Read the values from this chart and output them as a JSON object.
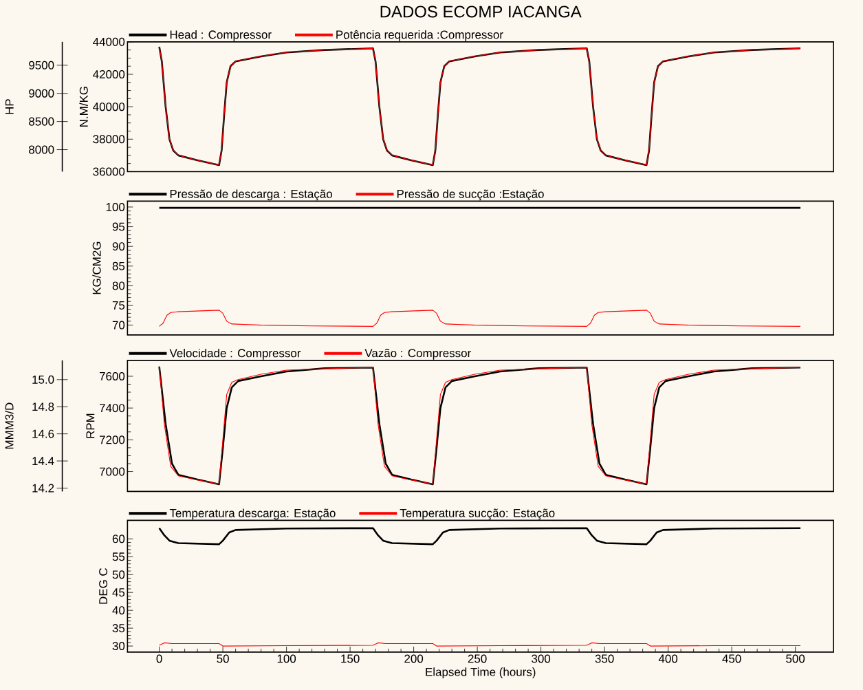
{
  "chart_data": [
    {
      "type": "line",
      "title": "DADOS ECOMP IACANGA",
      "ylabel": "N.M/KG",
      "y2label": "HP",
      "xlim": [
        -25,
        530
      ],
      "ylim": [
        36000,
        44000
      ],
      "yticks": [
        36000,
        38000,
        40000,
        42000,
        44000
      ],
      "y2lim": [
        7610,
        9915
      ],
      "y2ticks": [
        8000,
        8500,
        9000,
        9500
      ],
      "tick_labels": "y",
      "legend": "top",
      "series": [
        {
          "name": "Head : Compressor",
          "color": "#000000",
          "x": [
            0,
            2,
            5,
            8,
            11,
            15,
            30,
            47,
            49,
            51,
            53,
            56,
            60,
            80,
            100,
            130,
            168,
            170,
            173,
            176,
            179,
            183,
            198,
            215,
            217,
            219,
            221,
            224,
            228,
            248,
            268,
            298,
            336,
            338,
            341,
            344,
            347,
            351,
            366,
            383,
            385,
            387,
            389,
            392,
            396,
            416,
            436,
            466,
            504
          ],
          "values": [
            43700,
            42800,
            40000,
            38000,
            37300,
            37000,
            36700,
            36400,
            37300,
            39500,
            41500,
            42500,
            42800,
            43100,
            43350,
            43500,
            43600,
            42800,
            40000,
            38000,
            37300,
            37000,
            36700,
            36400,
            37300,
            39500,
            41500,
            42500,
            42800,
            43100,
            43350,
            43500,
            43600,
            42800,
            40000,
            38000,
            37300,
            37000,
            36700,
            36400,
            37300,
            39500,
            41500,
            42500,
            42800,
            43100,
            43350,
            43500,
            43600
          ]
        },
        {
          "name": "Potência requerida :Compressor",
          "color": "#ff0000",
          "axis": "y2",
          "x": [
            0,
            2,
            5,
            8,
            11,
            15,
            30,
            47,
            49,
            51,
            53,
            56,
            60,
            80,
            100,
            130,
            168,
            170,
            173,
            176,
            179,
            183,
            198,
            215,
            217,
            219,
            221,
            224,
            228,
            248,
            268,
            298,
            336,
            338,
            341,
            344,
            347,
            351,
            366,
            383,
            385,
            387,
            389,
            392,
            396,
            416,
            436,
            466,
            504
          ],
          "values": [
            9830,
            9570,
            8760,
            8190,
            7990,
            7900,
            7810,
            7730,
            7990,
            8620,
            9200,
            9480,
            9570,
            9660,
            9730,
            9770,
            9800,
            9570,
            8760,
            8190,
            7990,
            7900,
            7810,
            7730,
            7990,
            8620,
            9200,
            9480,
            9570,
            9660,
            9730,
            9770,
            9800,
            9570,
            8760,
            8190,
            7990,
            7900,
            7810,
            7730,
            7990,
            8620,
            9200,
            9480,
            9570,
            9660,
            9730,
            9770,
            9800
          ]
        }
      ]
    },
    {
      "type": "line",
      "ylabel": "KG/CM2G",
      "xlim": [
        -25,
        530
      ],
      "ylim": [
        67.5,
        101.5
      ],
      "yticks": [
        70,
        75,
        80,
        85,
        90,
        95,
        100
      ],
      "tick_labels": "y",
      "legend": "top",
      "series": [
        {
          "name": "Pressão de descarga : Estação",
          "color": "#000000",
          "x": [
            0,
            504
          ],
          "values": [
            99.8,
            99.8
          ]
        },
        {
          "name": "Pressão de sucção :Estação",
          "color": "#ff0000",
          "x": [
            0,
            3,
            6,
            9,
            15,
            47,
            50,
            53,
            57,
            80,
            120,
            168,
            171,
            174,
            177,
            183,
            215,
            218,
            221,
            225,
            248,
            288,
            336,
            339,
            342,
            345,
            351,
            383,
            386,
            389,
            393,
            416,
            456,
            504
          ],
          "values": [
            69.7,
            70.5,
            72.5,
            73.2,
            73.4,
            73.8,
            73.0,
            71.0,
            70.3,
            70.0,
            69.8,
            69.7,
            70.5,
            72.5,
            73.2,
            73.4,
            73.8,
            73.0,
            71.0,
            70.3,
            70.0,
            69.8,
            69.7,
            70.5,
            72.5,
            73.2,
            73.4,
            73.8,
            73.0,
            71.0,
            70.3,
            70.0,
            69.8,
            69.7
          ]
        }
      ]
    },
    {
      "type": "line",
      "ylabel": "RPM",
      "y2label": "MMM3/D",
      "xlim": [
        -25,
        530
      ],
      "ylim": [
        6875,
        7700
      ],
      "yticks": [
        7000,
        7200,
        7400,
        7600
      ],
      "y2lim": [
        14.175,
        15.142
      ],
      "y2ticks": [
        14.2,
        14.4,
        14.6,
        14.8,
        {
          "value": 15,
          "label": "15.0"
        }
      ],
      "tick_labels": "y",
      "legend": "top",
      "series": [
        {
          "name": "Velocidade  : Compressor",
          "color": "#000000",
          "x": [
            0,
            5,
            10,
            15,
            30,
            47,
            50,
            53,
            57,
            62,
            80,
            100,
            130,
            168,
            173,
            178,
            183,
            198,
            215,
            218,
            221,
            225,
            230,
            248,
            268,
            298,
            336,
            341,
            346,
            351,
            366,
            383,
            386,
            389,
            393,
            398,
            416,
            436,
            466,
            504
          ],
          "values": [
            7660,
            7300,
            7050,
            6980,
            6950,
            6920,
            7150,
            7400,
            7530,
            7570,
            7600,
            7630,
            7650,
            7655,
            7300,
            7050,
            6980,
            6950,
            6920,
            7150,
            7400,
            7530,
            7570,
            7600,
            7630,
            7650,
            7655,
            7300,
            7050,
            6980,
            6950,
            6920,
            7150,
            7400,
            7530,
            7570,
            7600,
            7630,
            7650,
            7655
          ]
        },
        {
          "name": "Vazão : Compressor",
          "color": "#ff0000",
          "axis": "y2",
          "x": [
            0,
            4,
            9,
            15,
            30,
            47,
            50,
            53,
            57,
            62,
            80,
            100,
            130,
            168,
            172,
            177,
            183,
            198,
            215,
            218,
            221,
            225,
            230,
            248,
            268,
            298,
            336,
            340,
            345,
            351,
            366,
            383,
            386,
            389,
            393,
            398,
            416,
            436,
            466,
            504
          ],
          "values": [
            15.1,
            14.67,
            14.36,
            14.29,
            14.26,
            14.23,
            14.56,
            14.89,
            14.98,
            15.0,
            15.04,
            15.07,
            15.08,
            15.09,
            14.67,
            14.36,
            14.29,
            14.26,
            14.23,
            14.56,
            14.89,
            14.98,
            15.0,
            15.04,
            15.07,
            15.08,
            15.09,
            14.67,
            14.36,
            14.29,
            14.26,
            14.23,
            14.56,
            14.89,
            14.98,
            15.0,
            15.04,
            15.07,
            15.08,
            15.09
          ]
        }
      ]
    },
    {
      "type": "line",
      "xlabel": "Elapsed Time (hours)",
      "ylabel": "DEG C",
      "xlim": [
        -25,
        530
      ],
      "xticks": [
        0,
        50,
        100,
        150,
        200,
        250,
        300,
        350,
        400,
        450,
        500
      ],
      "ylim": [
        28.3,
        65.2
      ],
      "yticks": [
        30,
        35,
        40,
        45,
        50,
        55,
        60
      ],
      "legend": "top",
      "series": [
        {
          "name": "Temperatura descarga: Estação",
          "color": "#000000",
          "x": [
            0,
            4,
            8,
            15,
            47,
            50,
            55,
            60,
            100,
            168,
            172,
            176,
            183,
            215,
            218,
            223,
            228,
            268,
            336,
            340,
            344,
            351,
            383,
            386,
            391,
            396,
            436,
            504
          ],
          "values": [
            63.0,
            61.0,
            59.5,
            58.8,
            58.5,
            59.5,
            61.8,
            62.5,
            62.9,
            63.0,
            61.0,
            59.5,
            58.8,
            58.5,
            59.5,
            61.8,
            62.5,
            62.9,
            63.0,
            61.0,
            59.5,
            58.8,
            58.5,
            59.5,
            61.8,
            62.5,
            62.9,
            63.0
          ]
        },
        {
          "name": "Temperatura sucção: Estação",
          "color": "#ff0000",
          "x": [
            0,
            4,
            10,
            47,
            50,
            100,
            168,
            172,
            178,
            215,
            218,
            268,
            336,
            340,
            346,
            383,
            386,
            436,
            504
          ],
          "values": [
            30.2,
            30.9,
            30.7,
            30.7,
            30.0,
            30.1,
            30.2,
            30.9,
            30.7,
            30.7,
            30.0,
            30.1,
            30.2,
            30.9,
            30.7,
            30.7,
            30.0,
            30.1,
            30.1
          ]
        }
      ]
    }
  ]
}
